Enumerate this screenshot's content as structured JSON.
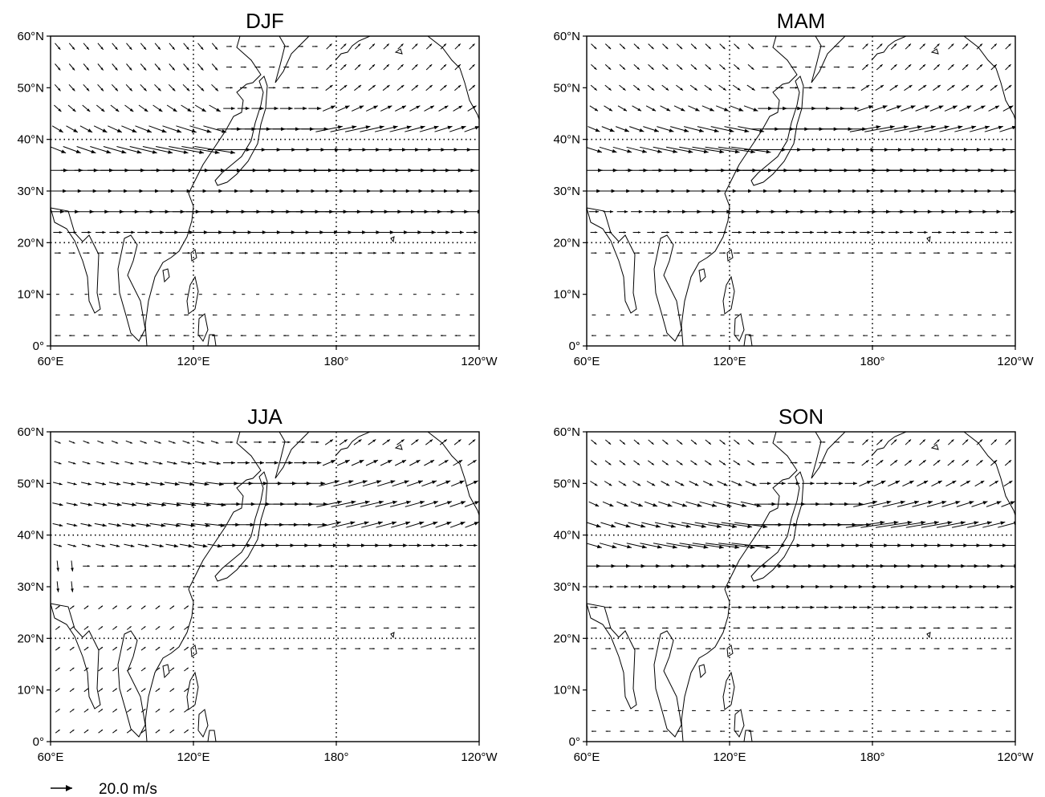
{
  "figure": {
    "reference_vector": {
      "arrow_icon": "right-arrow-icon",
      "label": "20.0 m/s",
      "magnitude_ms": 20.0
    }
  },
  "map": {
    "lat_range": [
      0,
      60
    ],
    "lon_range": [
      60,
      240
    ],
    "lat_ticks": [
      "0°",
      "10°N",
      "20°N",
      "30°N",
      "40°N",
      "50°N",
      "60°N"
    ],
    "lon_ticks": [
      "60°E",
      "120°E",
      "180°",
      "120°W"
    ],
    "grid": "dotted at 120°E, 180°, 20°N, 40°N"
  },
  "panels": [
    {
      "title": "DJF",
      "jet_strength": 1.0,
      "jet_lat": 33,
      "tropical_easterly_ms": 6,
      "monsoon": false
    },
    {
      "title": "MAM",
      "jet_strength": 0.8,
      "jet_lat": 35,
      "tropical_easterly_ms": 5,
      "monsoon": false
    },
    {
      "title": "JJA",
      "jet_strength": 0.35,
      "jet_lat": 45,
      "tropical_easterly_ms": 3,
      "monsoon": true
    },
    {
      "title": "SON",
      "jet_strength": 0.7,
      "jet_lat": 38,
      "tropical_easterly_ms": 5,
      "monsoon": false
    }
  ],
  "colors": {
    "ink": "#000000",
    "background": "#ffffff"
  }
}
